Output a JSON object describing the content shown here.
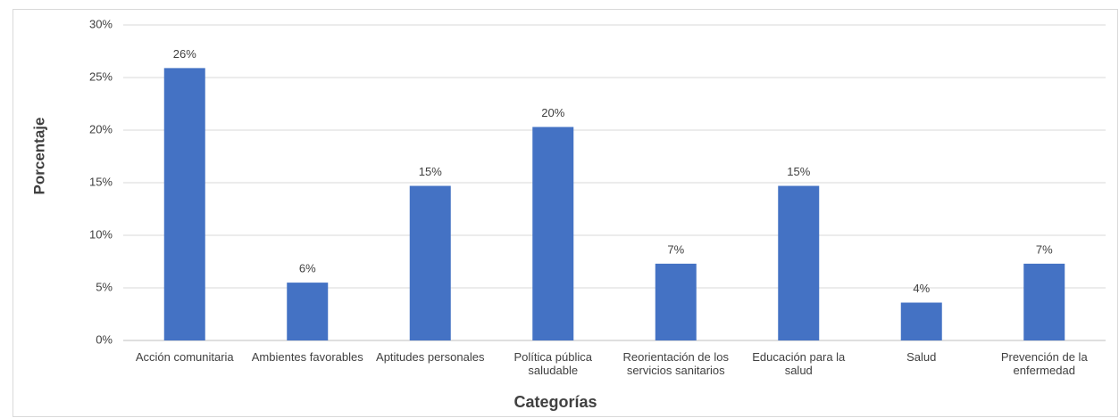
{
  "chart_data": {
    "type": "bar",
    "x_label": "Categorías",
    "y_label": "Porcentaje",
    "categories": [
      "Acción comunitaria",
      "Ambientes favorables",
      "Aptitudes personales",
      "Política pública saludable",
      "Reorientación de los servicios sanitarios",
      "Educación para la salud",
      "Salud",
      "Prevención de la enfermedad"
    ],
    "values": [
      25.9,
      5.5,
      14.7,
      20.3,
      7.3,
      14.7,
      3.6,
      7.3
    ],
    "value_labels": [
      "26%",
      "6%",
      "15%",
      "20%",
      "7%",
      "15%",
      "4%",
      "7%"
    ],
    "color": "#4472c4",
    "ylim": [
      0,
      30
    ],
    "yticks": [
      {
        "value": 0,
        "label": "0%"
      },
      {
        "value": 5,
        "label": "5%"
      },
      {
        "value": 10,
        "label": "10%"
      },
      {
        "value": 15,
        "label": "15%"
      },
      {
        "value": 20,
        "label": "20%"
      },
      {
        "value": 25,
        "label": "25%"
      },
      {
        "value": 30,
        "label": "30%"
      }
    ],
    "grid": true
  }
}
